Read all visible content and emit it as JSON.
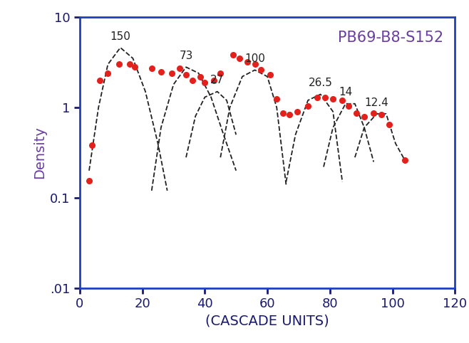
{
  "chart_data": {
    "type": "line",
    "title": "PB69-B8-S152",
    "x_label": "(CASCADE UNITS)",
    "y_label": "Density",
    "log": "y",
    "grid": false,
    "xlim": [
      0,
      120
    ],
    "xticks": [
      0,
      20,
      40,
      60,
      80,
      100,
      120
    ],
    "ylim": [
      0.01,
      10
    ],
    "yticks": [
      {
        "value": 0.01,
        "label": ".01"
      },
      {
        "value": 0.1,
        "label": "0.1"
      },
      1,
      10
    ],
    "series": [
      {
        "type": "scatter",
        "color": "#e3201b",
        "marker": "circle",
        "x": [
          3,
          4,
          6.5,
          9,
          12.5,
          16,
          17.5,
          23,
          26,
          29.5,
          32,
          34,
          36,
          38.5,
          40,
          43,
          45,
          49,
          51,
          53.5,
          56,
          58,
          61,
          63,
          65,
          67,
          69.5,
          73,
          76,
          78.5,
          81,
          84,
          86,
          88.5,
          91,
          94,
          96.5,
          99,
          104
        ],
        "values": [
          0.155,
          0.38,
          2.0,
          2.4,
          3.0,
          3.0,
          2.8,
          2.7,
          2.5,
          2.4,
          2.7,
          2.3,
          2.0,
          2.2,
          1.9,
          2.0,
          2.4,
          3.8,
          3.5,
          3.2,
          3.0,
          2.6,
          2.3,
          1.25,
          0.86,
          0.83,
          0.9,
          1.04,
          1.3,
          1.3,
          1.25,
          1.2,
          1.04,
          0.86,
          0.79,
          0.86,
          0.83,
          0.65,
          0.26
        ]
      },
      {
        "name": "150",
        "type": "line",
        "color": "#222222",
        "line_style": "dashed",
        "x": [
          3,
          6,
          9,
          13,
          17,
          21,
          25,
          28
        ],
        "values": [
          0.2,
          1.0,
          3.0,
          4.6,
          3.5,
          1.5,
          0.4,
          0.12
        ]
      },
      {
        "name": "73",
        "type": "line",
        "color": "#222222",
        "line_style": "dashed",
        "x": [
          23,
          26,
          30,
          34,
          38,
          42,
          46,
          50
        ],
        "values": [
          0.12,
          0.6,
          1.8,
          2.8,
          2.4,
          1.3,
          0.5,
          0.2
        ]
      },
      {
        "name": "27",
        "type": "line",
        "color": "#222222",
        "line_style": "dashed",
        "x": [
          34,
          37,
          40,
          44,
          47,
          50
        ],
        "values": [
          0.28,
          0.8,
          1.3,
          1.5,
          1.2,
          0.5
        ]
      },
      {
        "name": "100",
        "type": "line",
        "color": "#222222",
        "line_style": "dashed",
        "x": [
          45,
          48,
          52,
          56,
          60,
          63,
          66
        ],
        "values": [
          0.28,
          1.0,
          2.2,
          2.6,
          2.2,
          1.0,
          0.14
        ]
      },
      {
        "name": "26.5",
        "type": "line",
        "color": "#222222",
        "line_style": "dashed",
        "x": [
          66,
          69,
          73,
          77,
          81,
          84
        ],
        "values": [
          0.15,
          0.5,
          1.2,
          1.4,
          0.9,
          0.15
        ]
      },
      {
        "name": "14",
        "type": "line",
        "color": "#222222",
        "line_style": "dashed",
        "x": [
          78,
          81,
          85,
          88,
          91,
          94
        ],
        "values": [
          0.22,
          0.6,
          1.1,
          1.1,
          0.6,
          0.25
        ]
      },
      {
        "name": "12.4",
        "type": "line",
        "color": "#222222",
        "line_style": "dashed",
        "x": [
          88,
          91,
          95,
          98,
          101,
          104
        ],
        "values": [
          0.28,
          0.6,
          0.85,
          0.85,
          0.4,
          0.26
        ]
      }
    ]
  }
}
